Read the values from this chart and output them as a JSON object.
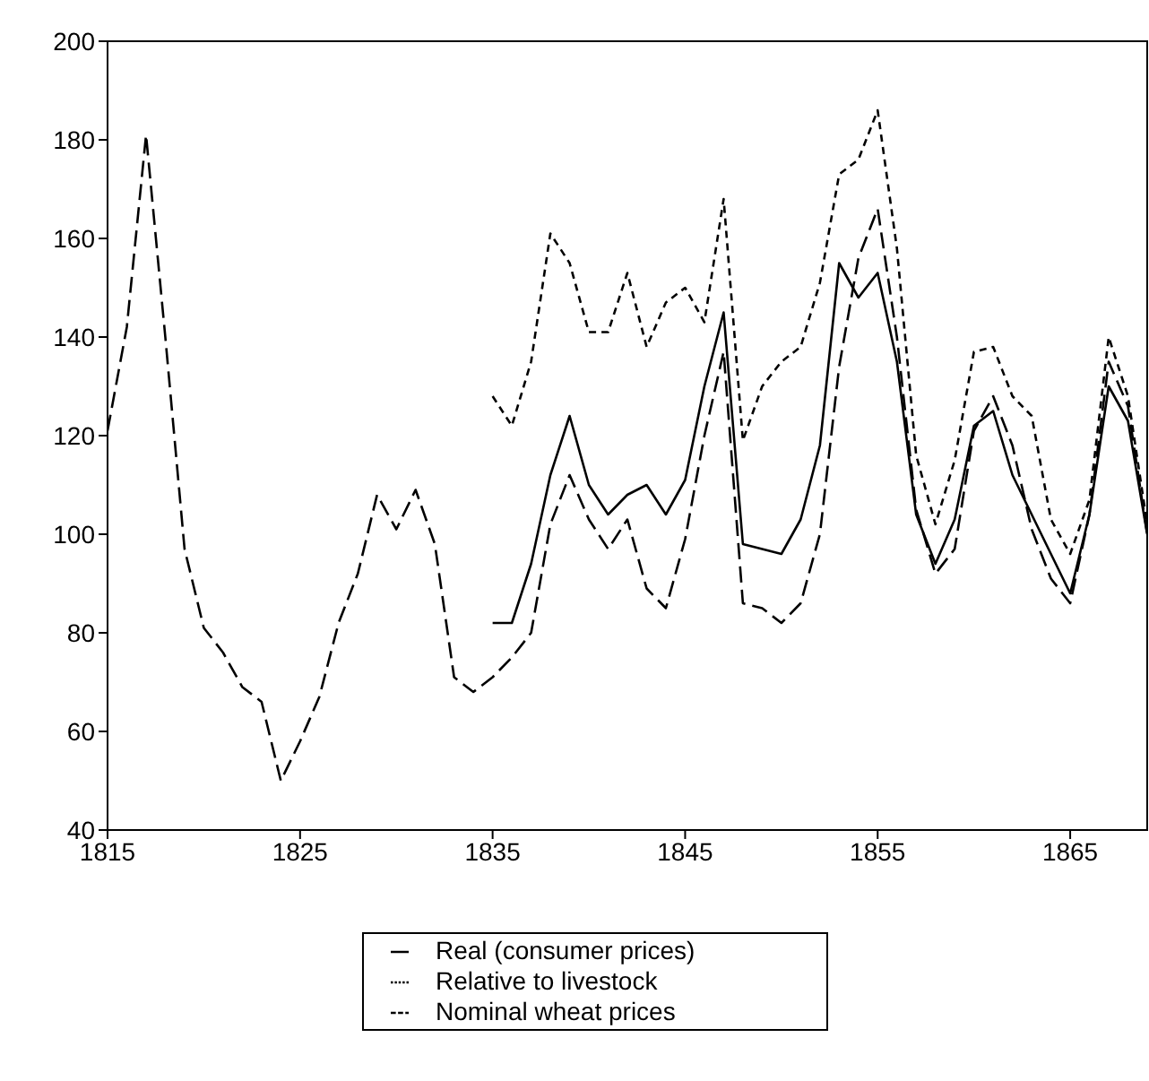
{
  "chart_data": {
    "type": "line",
    "x": [
      1815,
      1816,
      1817,
      1818,
      1819,
      1820,
      1821,
      1822,
      1823,
      1824,
      1825,
      1826,
      1827,
      1828,
      1829,
      1830,
      1831,
      1832,
      1833,
      1834,
      1835,
      1836,
      1837,
      1838,
      1839,
      1840,
      1841,
      1842,
      1843,
      1844,
      1845,
      1846,
      1847,
      1848,
      1849,
      1850,
      1851,
      1852,
      1853,
      1854,
      1855,
      1856,
      1857,
      1858,
      1859,
      1860,
      1861,
      1862,
      1863,
      1864,
      1865,
      1866,
      1867,
      1868,
      1869
    ],
    "series": [
      {
        "name": "Real (consumer prices)",
        "color": "#000000",
        "line_style": "solid",
        "values": [
          null,
          null,
          null,
          null,
          null,
          null,
          null,
          null,
          null,
          null,
          null,
          null,
          null,
          null,
          null,
          null,
          null,
          null,
          null,
          null,
          82,
          82,
          94,
          112,
          124,
          110,
          104,
          108,
          110,
          104,
          111,
          130,
          145,
          98,
          97,
          96,
          103,
          118,
          155,
          148,
          153,
          135,
          104,
          94,
          103,
          122,
          125,
          112,
          104,
          96,
          88,
          104,
          130,
          123,
          100
        ]
      },
      {
        "name": "Relative to livestock",
        "color": "#000000",
        "line_style": "dotted",
        "values": [
          null,
          null,
          null,
          null,
          null,
          null,
          null,
          null,
          null,
          null,
          null,
          null,
          null,
          null,
          null,
          null,
          null,
          null,
          null,
          null,
          128,
          122,
          135,
          161,
          155,
          141,
          141,
          153,
          138,
          147,
          150,
          143,
          168,
          119,
          130,
          135,
          138,
          151,
          173,
          176,
          186,
          158,
          116,
          102,
          115,
          137,
          138,
          128,
          124,
          103,
          96,
          107,
          140,
          128,
          102
        ]
      },
      {
        "name": "Nominal wheat prices",
        "color": "#000000",
        "line_style": "dashed",
        "values": [
          121,
          142,
          181,
          140,
          97,
          81,
          76,
          69,
          66,
          50,
          58,
          67,
          82,
          92,
          108,
          101,
          109,
          98,
          71,
          68,
          71,
          75,
          80,
          102,
          112,
          103,
          97,
          103,
          89,
          85,
          99,
          120,
          137,
          86,
          85,
          82,
          86,
          100,
          134,
          156,
          166,
          140,
          105,
          92,
          97,
          121,
          128,
          118,
          101,
          91,
          86,
          104,
          135,
          126,
          100
        ]
      }
    ],
    "xlim": [
      1815,
      1869
    ],
    "xticks": [
      1815,
      1825,
      1835,
      1845,
      1855,
      1865
    ],
    "ylim": [
      40,
      200
    ],
    "yticks": [
      40,
      60,
      80,
      100,
      120,
      140,
      160,
      180,
      200
    ],
    "legend": "bottom",
    "marker": "none"
  }
}
